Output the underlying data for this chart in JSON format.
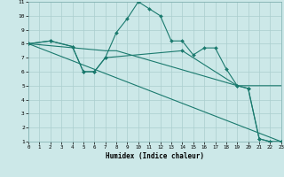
{
  "xlabel": "Humidex (Indice chaleur)",
  "bg_color": "#cce8e8",
  "grid_color": "#aacece",
  "line_color": "#1a7a6e",
  "marker_color": "#1a7a6e",
  "xlim": [
    0,
    23
  ],
  "ylim": [
    1,
    11
  ],
  "xticks": [
    0,
    1,
    2,
    3,
    4,
    5,
    6,
    7,
    8,
    9,
    10,
    11,
    12,
    13,
    14,
    15,
    16,
    17,
    18,
    19,
    20,
    21,
    22,
    23
  ],
  "yticks": [
    1,
    2,
    3,
    4,
    5,
    6,
    7,
    8,
    9,
    10,
    11
  ],
  "axis_bg": "#cce8e8",
  "series": [
    {
      "x": [
        0,
        23
      ],
      "y": [
        8.0,
        1.0
      ],
      "has_markers": false
    },
    {
      "x": [
        0,
        7,
        8,
        19,
        22,
        23
      ],
      "y": [
        8.0,
        7.5,
        7.5,
        5.0,
        5.0,
        5.0
      ],
      "has_markers": false
    },
    {
      "x": [
        0,
        2,
        4,
        5,
        6,
        7,
        14,
        19,
        20,
        21,
        22,
        23
      ],
      "y": [
        8.0,
        8.2,
        7.8,
        6.0,
        6.0,
        7.0,
        7.5,
        5.0,
        4.8,
        1.2,
        1.0,
        1.0
      ],
      "has_markers": true
    },
    {
      "x": [
        0,
        2,
        4,
        5,
        6,
        7,
        8,
        9,
        10,
        11,
        12,
        13,
        14,
        15,
        16,
        17,
        18,
        19,
        20,
        21,
        22,
        23
      ],
      "y": [
        8.0,
        8.2,
        7.8,
        6.0,
        6.0,
        7.0,
        8.8,
        9.8,
        11.0,
        10.5,
        10.0,
        8.2,
        8.2,
        7.2,
        7.7,
        7.7,
        6.2,
        5.0,
        4.8,
        1.2,
        1.0,
        1.0
      ],
      "has_markers": true
    }
  ]
}
